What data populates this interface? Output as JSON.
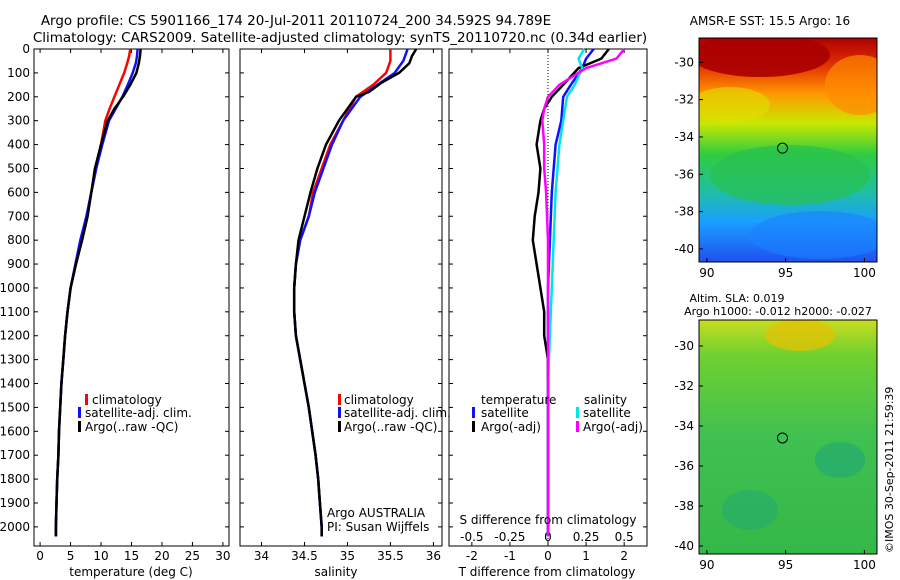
{
  "header": {
    "title_line1": "Argo profile: CS 5901166_174 20-Jul-2011 20110724_200 34.592S 94.789E",
    "title_line2": "Climatology: CARS2009. Satellite-adjusted climatology: synTS_20110720.nc (0.34d earlier)"
  },
  "credit": "©IMOS 30-Sep-2011 21:59:39",
  "colors": {
    "climatology": "#ff0000",
    "satellite": "#1010ff",
    "argo": "#000000",
    "salinity_satellite": "#00e6e6",
    "salinity_argo": "#ff00ff"
  },
  "chart_data": [
    {
      "type": "line",
      "id": "temperature",
      "xlabel": "temperature (deg C)",
      "ylabel": "",
      "xlim": [
        -1,
        31
      ],
      "ylim": [
        2080,
        0
      ],
      "xticks": [
        0,
        5,
        10,
        15,
        20,
        25,
        30
      ],
      "yticks": [
        0,
        100,
        200,
        300,
        400,
        500,
        600,
        700,
        800,
        900,
        1000,
        1100,
        1200,
        1300,
        1400,
        1500,
        1600,
        1700,
        1800,
        1900,
        2000
      ],
      "legend": [
        "climatology",
        "satellite-adj. clim.",
        "Argo(..raw -QC)"
      ],
      "series": [
        {
          "name": "climatology",
          "color": "#ff0000",
          "points": [
            [
              14.8,
              0
            ],
            [
              14.6,
              30
            ],
            [
              14.3,
              60
            ],
            [
              13.8,
              100
            ],
            [
              13.0,
              150
            ],
            [
              12.2,
              200
            ],
            [
              11.4,
              250
            ],
            [
              10.7,
              300
            ],
            [
              10.0,
              400
            ],
            [
              9.2,
              500
            ],
            [
              8.4,
              600
            ],
            [
              7.7,
              700
            ],
            [
              6.8,
              800
            ],
            [
              5.9,
              900
            ],
            [
              5.0,
              1000
            ],
            [
              4.5,
              1100
            ],
            [
              4.1,
              1200
            ],
            [
              3.8,
              1300
            ],
            [
              3.5,
              1400
            ],
            [
              3.3,
              1500
            ],
            [
              3.1,
              1600
            ],
            [
              3.0,
              1700
            ],
            [
              2.8,
              1800
            ],
            [
              2.7,
              1900
            ],
            [
              2.6,
              2000
            ],
            [
              2.6,
              2040
            ]
          ]
        },
        {
          "name": "satellite-adj. clim.",
          "color": "#1010ff",
          "points": [
            [
              16.0,
              0
            ],
            [
              15.9,
              30
            ],
            [
              15.7,
              60
            ],
            [
              15.2,
              100
            ],
            [
              14.4,
              150
            ],
            [
              13.5,
              200
            ],
            [
              12.4,
              250
            ],
            [
              11.3,
              300
            ],
            [
              10.2,
              400
            ],
            [
              9.2,
              500
            ],
            [
              8.4,
              600
            ],
            [
              7.6,
              700
            ],
            [
              6.6,
              800
            ],
            [
              5.8,
              900
            ],
            [
              5.0,
              1000
            ],
            [
              4.5,
              1100
            ],
            [
              4.1,
              1200
            ],
            [
              3.8,
              1300
            ],
            [
              3.5,
              1400
            ],
            [
              3.3,
              1500
            ],
            [
              3.1,
              1600
            ],
            [
              3.0,
              1700
            ],
            [
              2.8,
              1800
            ],
            [
              2.7,
              1900
            ],
            [
              2.6,
              2000
            ],
            [
              2.6,
              2040
            ]
          ]
        },
        {
          "name": "Argo(..raw -QC)",
          "color": "#000000",
          "points": [
            [
              16.5,
              0
            ],
            [
              16.4,
              30
            ],
            [
              16.2,
              60
            ],
            [
              15.8,
              100
            ],
            [
              14.8,
              150
            ],
            [
              13.6,
              200
            ],
            [
              12.2,
              250
            ],
            [
              11.1,
              300
            ],
            [
              10.0,
              400
            ],
            [
              9.0,
              500
            ],
            [
              8.4,
              600
            ],
            [
              7.8,
              700
            ],
            [
              6.9,
              800
            ],
            [
              5.9,
              900
            ],
            [
              5.0,
              1000
            ],
            [
              4.5,
              1100
            ],
            [
              4.1,
              1200
            ],
            [
              3.8,
              1300
            ],
            [
              3.5,
              1400
            ],
            [
              3.3,
              1500
            ],
            [
              3.1,
              1600
            ],
            [
              3.0,
              1700
            ],
            [
              2.8,
              1800
            ],
            [
              2.7,
              1900
            ],
            [
              2.6,
              2000
            ],
            [
              2.6,
              2040
            ]
          ]
        }
      ]
    },
    {
      "type": "line",
      "id": "salinity",
      "xlabel": "salinity",
      "ylabel": "",
      "xlim": [
        33.75,
        36.1
      ],
      "ylim": [
        2080,
        0
      ],
      "xticks": [
        34,
        34.5,
        35,
        35.5,
        36
      ],
      "xtick_labels": [
        "34",
        "34.5",
        "35",
        "35.5",
        "36"
      ],
      "legend": [
        "climatology",
        "satellite-adj. clim.",
        "Argo(..raw -QC)"
      ],
      "annotations": [
        "Argo AUSTRALIA",
        "PI: Susan Wijffels"
      ],
      "series": [
        {
          "name": "climatology",
          "color": "#ff0000",
          "points": [
            [
              35.5,
              0
            ],
            [
              35.5,
              50
            ],
            [
              35.45,
              100
            ],
            [
              35.3,
              150
            ],
            [
              35.1,
              200
            ],
            [
              34.95,
              300
            ],
            [
              34.8,
              400
            ],
            [
              34.7,
              500
            ],
            [
              34.6,
              600
            ],
            [
              34.55,
              700
            ],
            [
              34.45,
              800
            ],
            [
              34.4,
              900
            ],
            [
              34.38,
              1000
            ],
            [
              34.38,
              1100
            ],
            [
              34.4,
              1200
            ],
            [
              34.45,
              1300
            ],
            [
              34.5,
              1400
            ],
            [
              34.55,
              1500
            ],
            [
              34.59,
              1600
            ],
            [
              34.63,
              1700
            ],
            [
              34.66,
              1800
            ],
            [
              34.68,
              1900
            ],
            [
              34.7,
              2000
            ],
            [
              34.7,
              2040
            ]
          ]
        },
        {
          "name": "satellite-adj. clim.",
          "color": "#1010ff",
          "points": [
            [
              35.7,
              0
            ],
            [
              35.65,
              50
            ],
            [
              35.55,
              100
            ],
            [
              35.35,
              150
            ],
            [
              35.15,
              200
            ],
            [
              34.95,
              300
            ],
            [
              34.82,
              400
            ],
            [
              34.72,
              500
            ],
            [
              34.62,
              600
            ],
            [
              34.55,
              700
            ],
            [
              34.45,
              800
            ],
            [
              34.4,
              900
            ],
            [
              34.38,
              1000
            ],
            [
              34.38,
              1100
            ],
            [
              34.4,
              1200
            ],
            [
              34.45,
              1300
            ],
            [
              34.5,
              1400
            ],
            [
              34.55,
              1500
            ],
            [
              34.59,
              1600
            ],
            [
              34.63,
              1700
            ],
            [
              34.66,
              1800
            ],
            [
              34.68,
              1900
            ],
            [
              34.7,
              2000
            ],
            [
              34.7,
              2040
            ]
          ]
        },
        {
          "name": "Argo(..raw -QC)",
          "color": "#000000",
          "points": [
            [
              35.8,
              0
            ],
            [
              35.75,
              30
            ],
            [
              35.72,
              60
            ],
            [
              35.6,
              100
            ],
            [
              35.4,
              140
            ],
            [
              35.25,
              180
            ],
            [
              35.1,
              200
            ],
            [
              34.9,
              300
            ],
            [
              34.75,
              400
            ],
            [
              34.65,
              500
            ],
            [
              34.57,
              600
            ],
            [
              34.5,
              700
            ],
            [
              34.43,
              800
            ],
            [
              34.4,
              900
            ],
            [
              34.38,
              1000
            ],
            [
              34.38,
              1100
            ],
            [
              34.4,
              1200
            ],
            [
              34.45,
              1300
            ],
            [
              34.5,
              1400
            ],
            [
              34.55,
              1500
            ],
            [
              34.59,
              1600
            ],
            [
              34.63,
              1700
            ],
            [
              34.66,
              1800
            ],
            [
              34.68,
              1900
            ],
            [
              34.7,
              2000
            ],
            [
              34.7,
              2040
            ]
          ]
        }
      ]
    },
    {
      "type": "line",
      "id": "difference",
      "xlabel": "T difference from climatology",
      "xlabel_top": "S difference from climatology",
      "xlim": [
        -2.6,
        2.6
      ],
      "ylim": [
        2080,
        0
      ],
      "xticks": [
        -2,
        -1,
        0,
        1,
        2
      ],
      "xticks_top": [
        -0.5,
        -0.25,
        0,
        0.25,
        0.5
      ],
      "xticks_top_labels": [
        "-0.5",
        "-0.25",
        "0",
        "0.25",
        "0.5"
      ],
      "legend_headers": [
        "temperature",
        "salinity"
      ],
      "legend": [
        "satellite",
        "Argo(-adj)",
        "satellite",
        "Argo(-adj)"
      ],
      "series": [
        {
          "name": "temperature satellite",
          "color": "#1010ff",
          "points": [
            [
              1.2,
              0
            ],
            [
              1.0,
              40
            ],
            [
              0.9,
              80
            ],
            [
              0.6,
              150
            ],
            [
              0.4,
              200
            ],
            [
              0.35,
              300
            ],
            [
              0.2,
              400
            ],
            [
              0.1,
              600
            ],
            [
              0.05,
              800
            ],
            [
              0.0,
              1000
            ],
            [
              0.0,
              2040
            ]
          ]
        },
        {
          "name": "temperature Argo(-adj)",
          "color": "#000000",
          "points": [
            [
              1.6,
              0
            ],
            [
              1.4,
              40
            ],
            [
              0.8,
              80
            ],
            [
              0.4,
              150
            ],
            [
              0.1,
              200
            ],
            [
              -0.1,
              250
            ],
            [
              -0.2,
              300
            ],
            [
              -0.3,
              400
            ],
            [
              -0.2,
              500
            ],
            [
              -0.25,
              600
            ],
            [
              -0.35,
              700
            ],
            [
              -0.4,
              800
            ],
            [
              -0.3,
              900
            ],
            [
              -0.2,
              1000
            ],
            [
              -0.1,
              1100
            ],
            [
              -0.1,
              1200
            ],
            [
              0.0,
              1300
            ],
            [
              0.0,
              2040
            ]
          ]
        },
        {
          "name": "salinity satellite",
          "color": "#00e6e6",
          "points": [
            [
              0.95,
              0
            ],
            [
              0.8,
              40
            ],
            [
              0.9,
              80
            ],
            [
              0.7,
              150
            ],
            [
              0.5,
              200
            ],
            [
              0.4,
              300
            ],
            [
              0.3,
              400
            ],
            [
              0.25,
              500
            ],
            [
              0.2,
              600
            ],
            [
              0.15,
              800
            ],
            [
              0.1,
              1000
            ],
            [
              0.05,
              1200
            ],
            [
              0.0,
              1400
            ],
            [
              0.0,
              2040
            ]
          ]
        },
        {
          "name": "salinity Argo(-adj)",
          "color": "#ff00ff",
          "points": [
            [
              2.0,
              0
            ],
            [
              1.8,
              40
            ],
            [
              1.0,
              80
            ],
            [
              0.3,
              150
            ],
            [
              0.0,
              200
            ],
            [
              -0.1,
              250
            ],
            [
              -0.15,
              300
            ],
            [
              -0.1,
              400
            ],
            [
              -0.1,
              500
            ],
            [
              -0.05,
              600
            ],
            [
              0.0,
              800
            ],
            [
              0.0,
              2040
            ]
          ]
        }
      ]
    },
    {
      "type": "heatmap",
      "id": "sst-map",
      "title": "AMSR-E SST: 15.5 Argo: 16",
      "xlim": [
        89.5,
        100.8
      ],
      "ylim": [
        -40.7,
        -28.7
      ],
      "xticks": [
        90,
        95,
        100
      ],
      "yticks": [
        -30,
        -32,
        -34,
        -36,
        -38,
        -40
      ],
      "marker": [
        94.8,
        -34.6
      ]
    },
    {
      "type": "heatmap",
      "id": "sla-map",
      "title": "Altim. SLA: 0.019",
      "subtitle": "Argo h1000: -0.012 h2000: -0.027",
      "xlim": [
        89.5,
        100.8
      ],
      "ylim": [
        -40.4,
        -28.7
      ],
      "xticks": [
        90,
        95,
        100
      ],
      "yticks": [
        -30,
        -32,
        -34,
        -36,
        -38,
        -40
      ],
      "marker": [
        94.8,
        -34.6
      ]
    }
  ]
}
